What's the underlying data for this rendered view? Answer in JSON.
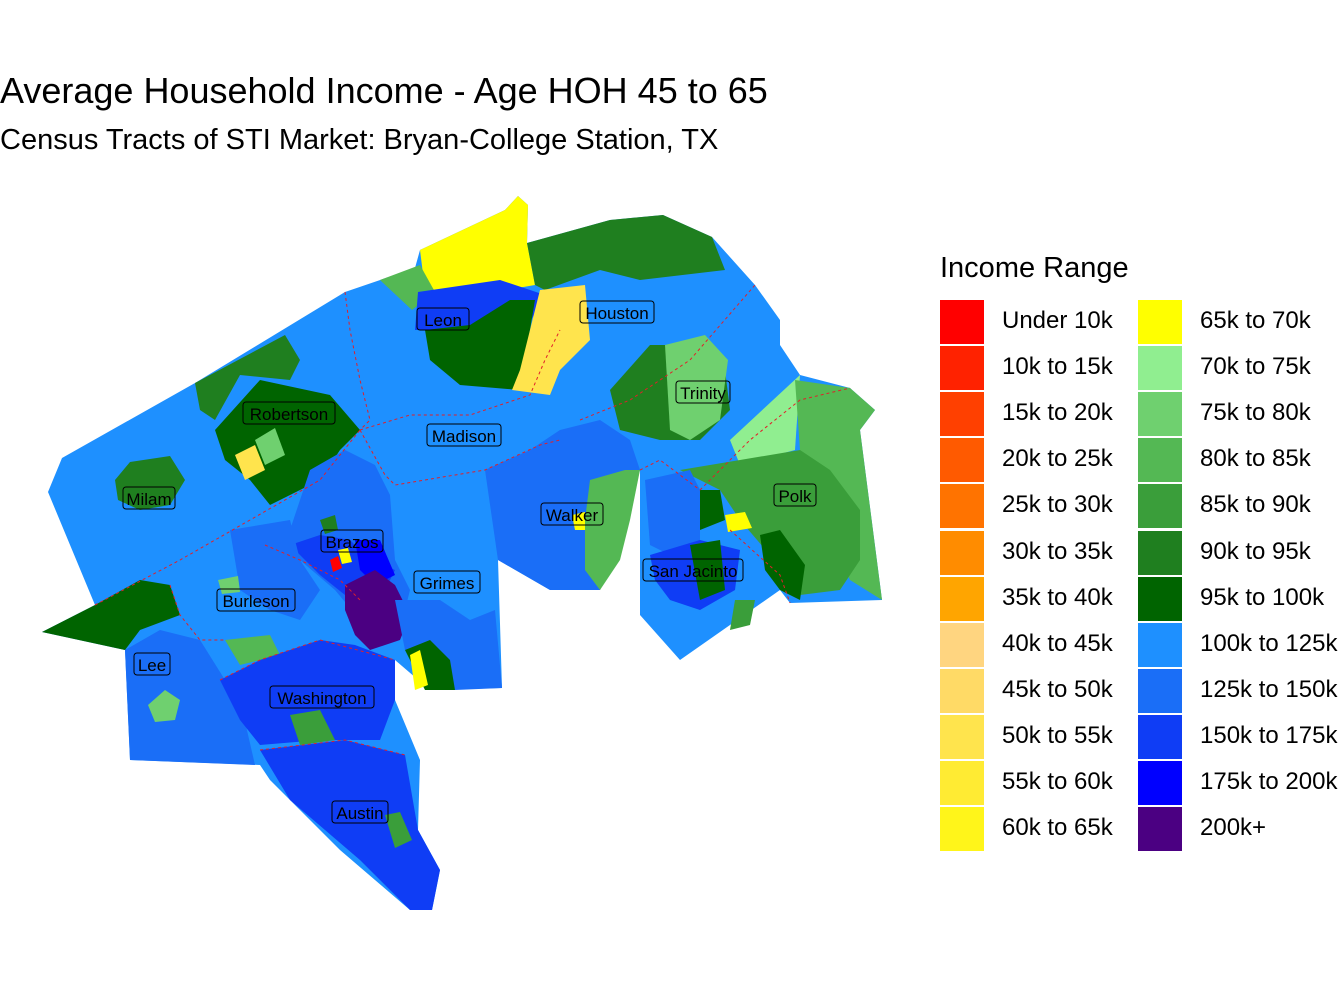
{
  "title": "Average Household Income - Age HOH 45 to 65",
  "subtitle": "Census Tracts of STI Market: Bryan-College Station, TX",
  "legend": {
    "title": "Income Range",
    "items": [
      {
        "label": "Under 10k",
        "color": "#FF0000"
      },
      {
        "label": "10k to 15k",
        "color": "#FF2200"
      },
      {
        "label": "15k to 20k",
        "color": "#FF4000"
      },
      {
        "label": "20k to 25k",
        "color": "#FF5A00"
      },
      {
        "label": "25k to 30k",
        "color": "#FF7300"
      },
      {
        "label": "30k to 35k",
        "color": "#FF8C00"
      },
      {
        "label": "35k to 40k",
        "color": "#FFA500"
      },
      {
        "label": "40k to 45k",
        "color": "#FFD580"
      },
      {
        "label": "45k to 50k",
        "color": "#FFDA66"
      },
      {
        "label": "50k to 55k",
        "color": "#FFE44D"
      },
      {
        "label": "55k to 60k",
        "color": "#FFEB33"
      },
      {
        "label": "60k to 65k",
        "color": "#FFF51A"
      },
      {
        "label": "65k to 70k",
        "color": "#FFFF00"
      },
      {
        "label": "70k to 75k",
        "color": "#90EE90"
      },
      {
        "label": "75k to 80k",
        "color": "#6FD06F"
      },
      {
        "label": "80k to 85k",
        "color": "#54B854"
      },
      {
        "label": "85k to 90k",
        "color": "#3A9E3A"
      },
      {
        "label": "90k to 95k",
        "color": "#1F7F1F"
      },
      {
        "label": "95k to 100k",
        "color": "#006400"
      },
      {
        "label": "100k to 125k",
        "color": "#1E90FF"
      },
      {
        "label": "125k to 150k",
        "color": "#1A6EF7"
      },
      {
        "label": "150k to 175k",
        "color": "#0F3DF5"
      },
      {
        "label": "175k to 200k",
        "color": "#0000FF"
      },
      {
        "label": "200k+",
        "color": "#4B0082"
      }
    ]
  },
  "counties": [
    {
      "name": "Leon"
    },
    {
      "name": "Houston"
    },
    {
      "name": "Robertson"
    },
    {
      "name": "Madison"
    },
    {
      "name": "Trinity"
    },
    {
      "name": "Milam"
    },
    {
      "name": "Polk"
    },
    {
      "name": "Walker"
    },
    {
      "name": "Brazos"
    },
    {
      "name": "Grimes"
    },
    {
      "name": "San Jacinto"
    },
    {
      "name": "Burleson"
    },
    {
      "name": "Lee"
    },
    {
      "name": "Washington"
    },
    {
      "name": "Austin"
    }
  ]
}
